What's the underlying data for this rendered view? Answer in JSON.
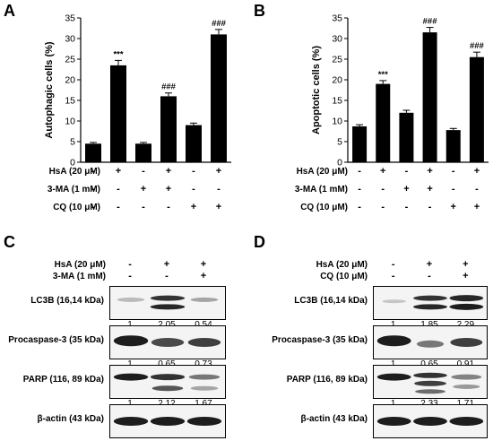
{
  "panelA": {
    "letter": "A",
    "chart_data": {
      "type": "bar",
      "ylabel": "Autophagic cells (%)",
      "ylim": [
        0,
        35
      ],
      "yticks": [
        0,
        5,
        10,
        15,
        20,
        25,
        30,
        35
      ],
      "values": [
        4.5,
        23.5,
        4.5,
        16,
        9,
        31
      ],
      "errors": [
        0.3,
        1.2,
        0.3,
        0.8,
        0.5,
        1.2
      ],
      "annotations": [
        "",
        "***",
        "",
        "###",
        "",
        "###"
      ]
    },
    "treatments": [
      {
        "label": "HsA (20 μM)",
        "signs": [
          "-",
          "+",
          "-",
          "+",
          "-",
          "+"
        ]
      },
      {
        "label": "3-MA (1 mM)",
        "signs": [
          "-",
          "-",
          "+",
          "+",
          "-",
          "-"
        ]
      },
      {
        "label": "CQ (10 μM)",
        "signs": [
          "-",
          "-",
          "-",
          "-",
          "+",
          "+"
        ]
      }
    ]
  },
  "panelB": {
    "letter": "B",
    "chart_data": {
      "type": "bar",
      "ylabel": "Apoptotic cells (%)",
      "ylim": [
        0,
        35
      ],
      "yticks": [
        0,
        5,
        10,
        15,
        20,
        25,
        30,
        35
      ],
      "values": [
        8.7,
        19,
        12,
        31.5,
        7.8,
        25.5
      ],
      "errors": [
        0.4,
        0.8,
        0.6,
        1.2,
        0.4,
        1.2
      ],
      "annotations": [
        "",
        "***",
        "",
        "###",
        "",
        "###"
      ]
    },
    "treatments": [
      {
        "label": "HsA  (20 μM)",
        "signs": [
          "-",
          "+",
          "-",
          "+",
          "-",
          "+"
        ]
      },
      {
        "label": "3-MA (1 mM)",
        "signs": [
          "-",
          "-",
          "+",
          "+",
          "-",
          "-"
        ]
      },
      {
        "label": "CQ (10 μM)",
        "signs": [
          "-",
          "-",
          "-",
          "-",
          "+",
          "+"
        ]
      }
    ]
  },
  "panelC": {
    "letter": "C",
    "treatments": [
      {
        "label": "HsA (20 μM)",
        "signs": [
          "-",
          "+",
          "+"
        ]
      },
      {
        "label": "3-MA (1 mM)",
        "signs": [
          "-",
          "-",
          "+"
        ]
      }
    ],
    "blots": [
      {
        "label": "LC3B (16,14 kDa)",
        "quant": [
          "1",
          "2.05",
          "0.54"
        ]
      },
      {
        "label": "Procaspase-3 (35 kDa)",
        "quant": [
          "1",
          "0.65",
          "0.73"
        ]
      },
      {
        "label": "PARP (116, 89 kDa)",
        "quant": [
          "1",
          "2.12",
          "1.67"
        ]
      },
      {
        "label": "β-actin (43 kDa)",
        "quant": []
      }
    ]
  },
  "panelD": {
    "letter": "D",
    "treatments": [
      {
        "label": "HsA (20 μM)",
        "signs": [
          "-",
          "+",
          "+"
        ]
      },
      {
        "label": "CQ (10 μM)",
        "signs": [
          "-",
          "-",
          "+"
        ]
      }
    ],
    "blots": [
      {
        "label": "LC3B (16,14 kDa)",
        "quant": [
          "1",
          "1.85",
          "2.29"
        ]
      },
      {
        "label": "Procaspase-3 (35 kDa)",
        "quant": [
          "1",
          "0.65",
          "0.91"
        ]
      },
      {
        "label": "PARP (116, 89 kDa)",
        "quant": [
          "1",
          "2.33",
          "1.71"
        ]
      },
      {
        "label": "β-actin (43 kDa)",
        "quant": []
      }
    ]
  }
}
